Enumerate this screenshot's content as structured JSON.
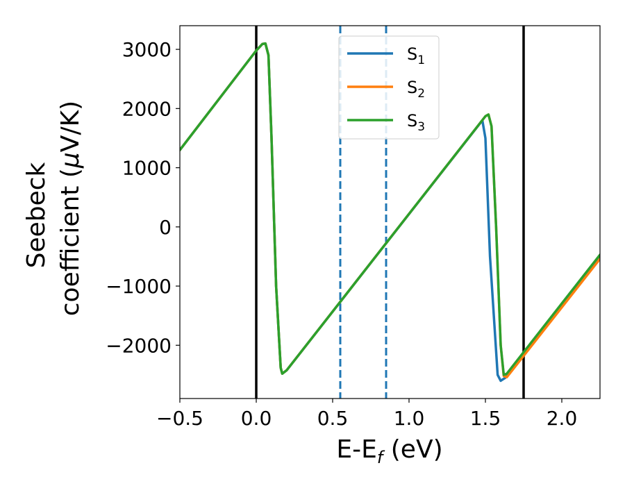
{
  "chart_data": {
    "type": "line",
    "xlabel": "E-E",
    "xlabel_sub": "f",
    "xlabel_unit": " (eV)",
    "ylabel_line1": "Seebeck",
    "ylabel_line2_prefix": "coefficient  (",
    "ylabel_line2_mu": "μ",
    "ylabel_line2_suffix": "V/K)",
    "xlim": [
      -0.5,
      2.25
    ],
    "ylim": [
      -2900,
      3400
    ],
    "xticks": [
      -0.5,
      0.0,
      0.5,
      1.0,
      1.5,
      2.0
    ],
    "xtick_labels": [
      "−0.5",
      "0.0",
      "0.5",
      "1.0",
      "1.5",
      "2.0"
    ],
    "yticks": [
      -2000,
      -1000,
      0,
      1000,
      2000,
      3000
    ],
    "ytick_labels": [
      "−2000",
      "−1000",
      "0",
      "1000",
      "2000",
      "3000"
    ],
    "legend_position": "top-center",
    "grid": false,
    "series": [
      {
        "name": "S",
        "sub": "1",
        "color": "#1f77b4",
        "points": [
          [
            -0.5,
            1300
          ],
          [
            0.0,
            2980
          ],
          [
            0.04,
            3090
          ],
          [
            0.06,
            3100
          ],
          [
            0.08,
            2900
          ],
          [
            0.1,
            1500
          ],
          [
            0.13,
            -1000
          ],
          [
            0.16,
            -2380
          ],
          [
            0.17,
            -2480
          ],
          [
            0.2,
            -2420
          ],
          [
            1.48,
            1800
          ],
          [
            1.5,
            1500
          ],
          [
            1.53,
            -500
          ],
          [
            1.58,
            -2500
          ],
          [
            1.6,
            -2600
          ],
          [
            1.63,
            -2550
          ],
          [
            2.25,
            -520
          ]
        ]
      },
      {
        "name": "S",
        "sub": "2",
        "color": "#ff7f0e",
        "points": [
          [
            -0.5,
            1300
          ],
          [
            0.0,
            2980
          ],
          [
            0.04,
            3090
          ],
          [
            0.06,
            3100
          ],
          [
            0.08,
            2900
          ],
          [
            0.1,
            1500
          ],
          [
            0.13,
            -1000
          ],
          [
            0.16,
            -2380
          ],
          [
            0.17,
            -2480
          ],
          [
            0.2,
            -2420
          ],
          [
            1.5,
            1870
          ],
          [
            1.52,
            1900
          ],
          [
            1.54,
            1700
          ],
          [
            1.57,
            0
          ],
          [
            1.6,
            -2000
          ],
          [
            1.62,
            -2520
          ],
          [
            1.64,
            -2540
          ],
          [
            2.25,
            -540
          ]
        ]
      },
      {
        "name": "S",
        "sub": "3",
        "color": "#2ca02c",
        "points": [
          [
            -0.5,
            1300
          ],
          [
            0.0,
            2980
          ],
          [
            0.04,
            3090
          ],
          [
            0.06,
            3100
          ],
          [
            0.08,
            2900
          ],
          [
            0.1,
            1500
          ],
          [
            0.13,
            -1000
          ],
          [
            0.16,
            -2380
          ],
          [
            0.17,
            -2480
          ],
          [
            0.2,
            -2420
          ],
          [
            1.5,
            1870
          ],
          [
            1.52,
            1900
          ],
          [
            1.54,
            1700
          ],
          [
            1.57,
            0
          ],
          [
            1.6,
            -2000
          ],
          [
            1.62,
            -2500
          ],
          [
            1.64,
            -2480
          ],
          [
            2.25,
            -470
          ]
        ]
      }
    ],
    "vlines": [
      {
        "x": 0.0,
        "style": "solid",
        "color": "#000000"
      },
      {
        "x": 1.75,
        "style": "solid",
        "color": "#000000"
      },
      {
        "x": 0.55,
        "style": "dashed",
        "color": "#1f77b4"
      },
      {
        "x": 0.85,
        "style": "dashed",
        "color": "#1f77b4"
      }
    ]
  }
}
